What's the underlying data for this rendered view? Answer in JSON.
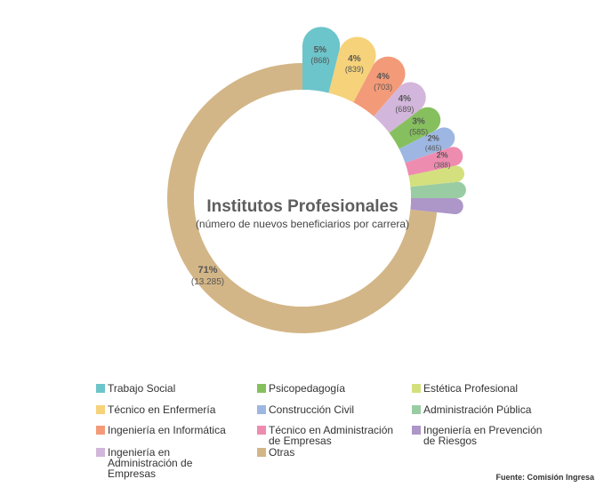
{
  "chart_data": {
    "type": "donut",
    "title": "Institutos Profesionales",
    "subtitle": "(número de nuevos beneficiarios por carrera)",
    "slices": [
      {
        "label": "Trabajo Social",
        "value": 868,
        "pct_label": "5%",
        "count_label": "(868)",
        "color": "#6cc5ca"
      },
      {
        "label": "Técnico en Enfermería",
        "value": 839,
        "pct_label": "4%",
        "count_label": "(839)",
        "color": "#f6d27a"
      },
      {
        "label": "Ingeniería en Informática",
        "value": 703,
        "pct_label": "4%",
        "count_label": "(703)",
        "color": "#f39a79"
      },
      {
        "label": "Ingeniería en Administración de Empresas",
        "value": 689,
        "pct_label": "4%",
        "count_label": "(689)",
        "color": "#d3b6db"
      },
      {
        "label": "Psicopedagogía",
        "value": 585,
        "pct_label": "3%",
        "count_label": "(585)",
        "color": "#86c05e"
      },
      {
        "label": "Construcción Civil",
        "value": 465,
        "pct_label": "2%",
        "count_label": "(465)",
        "color": "#9db7e2"
      },
      {
        "label": "Técnico en Administración de Empresas",
        "value": 388,
        "pct_label": "2%",
        "count_label": "(388)",
        "color": "#ee8cb0"
      },
      {
        "label": "Estética Profesional",
        "value": null,
        "pct_label": "",
        "count_label": "",
        "color": "#d4e07d"
      },
      {
        "label": "Administración Pública",
        "value": null,
        "pct_label": "",
        "count_label": "",
        "color": "#9acca4"
      },
      {
        "label": "Ingeniería en Prevención de Riesgos",
        "value": null,
        "pct_label": "",
        "count_label": "",
        "color": "#ad96c8"
      },
      {
        "label": "Otras",
        "value": 13285,
        "pct_label": "71%",
        "count_label": "(13.285)",
        "color": "#d3b687"
      }
    ],
    "legend_position": "bottom"
  },
  "legend": [
    {
      "label": "Trabajo Social",
      "color": "#6cc5ca"
    },
    {
      "label": "Psicopedagogía",
      "color": "#86c05e"
    },
    {
      "label": "Estética Profesional",
      "color": "#d4e07d"
    },
    {
      "label": "Técnico en Enfermería",
      "color": "#f6d27a"
    },
    {
      "label": "Construcción Civil",
      "color": "#9db7e2"
    },
    {
      "label": "Administración Pública",
      "color": "#9acca4"
    },
    {
      "label": "Ingeniería en Informática",
      "color": "#f39a79"
    },
    {
      "label": "Técnico en Administración de Empresas",
      "color": "#ee8cb0"
    },
    {
      "label": "Ingeniería en Prevención de Riesgos",
      "color": "#ad96c8"
    },
    {
      "label": "Ingeniería en Administración de Empresas",
      "color": "#d3b6db"
    },
    {
      "label": "Otras",
      "color": "#d3b687"
    }
  ],
  "source": "Fuente: Comisión Ingresa"
}
